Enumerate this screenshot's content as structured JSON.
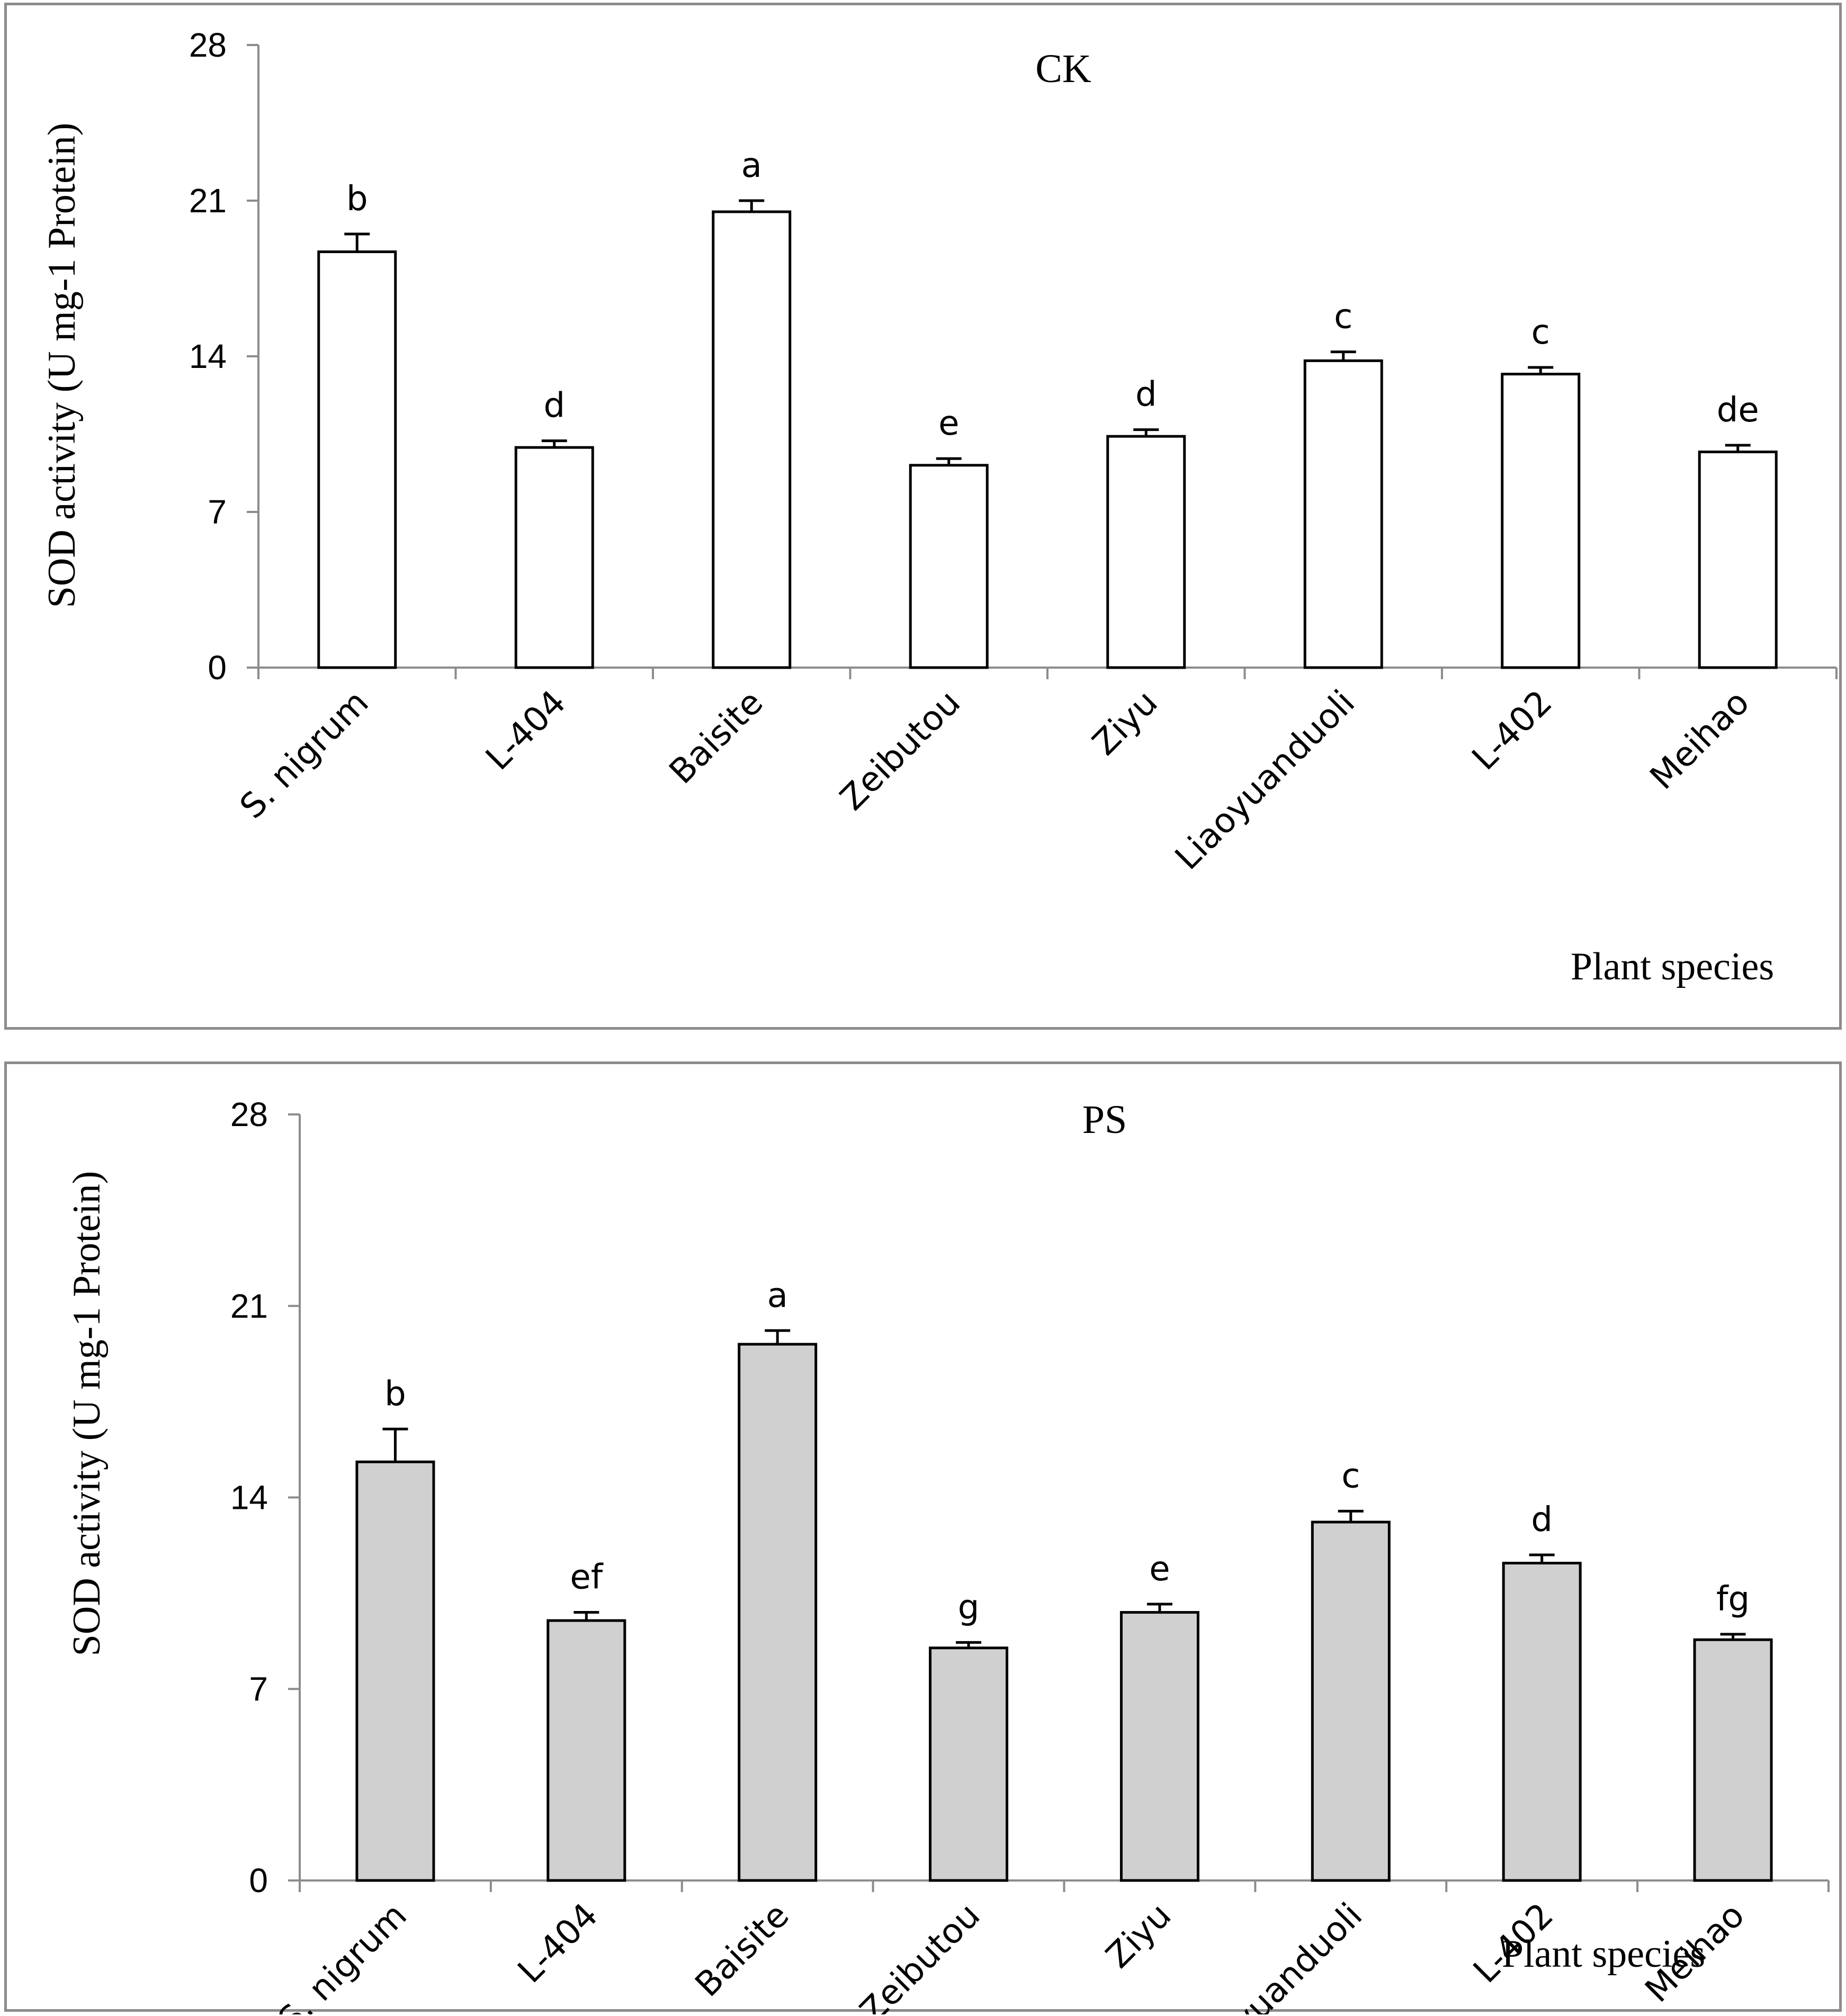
{
  "chart_data": [
    {
      "type": "bar",
      "title": "CK",
      "xlabel": "Plant species",
      "ylabel": "SOD activity (U mg-1 Protein)",
      "ylim": [
        0,
        28
      ],
      "yticks": [
        "0",
        "7",
        "14",
        "21",
        "28"
      ],
      "categories": [
        "S. nigrum",
        "L-404",
        "Baisite",
        "Zeibutou",
        "Ziyu",
        "Liaoyuanduoli",
        "L-402",
        "Meihao"
      ],
      "values": [
        18.7,
        9.9,
        20.5,
        9.1,
        10.4,
        13.8,
        13.2,
        9.7
      ],
      "errors": [
        0.8,
        0.3,
        0.5,
        0.3,
        0.3,
        0.4,
        0.3,
        0.3
      ],
      "significance": [
        "b",
        "d",
        "a",
        "e",
        "d",
        "c",
        "c",
        "de"
      ],
      "bar_color": "#ffffff"
    },
    {
      "type": "bar",
      "title": "PS",
      "xlabel": "Plant species",
      "ylabel": "SOD activity (U mg-1 Protein)",
      "ylim": [
        0,
        28
      ],
      "yticks": [
        "0",
        "7",
        "14",
        "21",
        "28"
      ],
      "categories": [
        "S. nigrum",
        "L-404",
        "Baisite",
        "Zeibutou",
        "Ziyu",
        "Liaoyuanduoli",
        "L-402",
        "Meihao"
      ],
      "values": [
        15.3,
        9.5,
        19.6,
        8.5,
        9.8,
        13.1,
        11.6,
        8.8
      ],
      "errors": [
        1.2,
        0.3,
        0.5,
        0.2,
        0.3,
        0.4,
        0.3,
        0.2
      ],
      "significance": [
        "b",
        "ef",
        "a",
        "g",
        "e",
        "c",
        "d",
        "fg"
      ],
      "bar_color": "#d0d0d0"
    }
  ]
}
